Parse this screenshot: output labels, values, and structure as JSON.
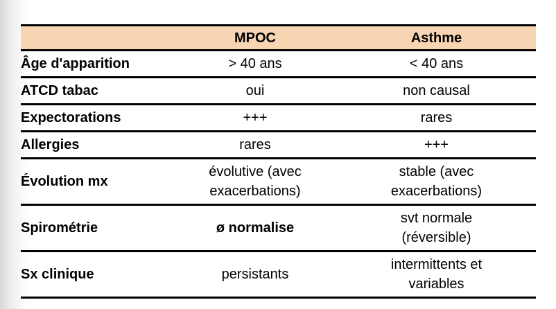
{
  "page": {
    "background": "#ffffff",
    "edge_shadow_color": "#d8d8d8"
  },
  "table": {
    "colors": {
      "header_bg": "#F7D5B3",
      "border": "#000000",
      "text": "#000000"
    },
    "header": {
      "col1": "",
      "col2": "MPOC",
      "col3": "Asthme"
    },
    "rows": [
      {
        "label": "Âge d'apparition",
        "mpoc": "> 40 ans",
        "asthme": "< 40 ans"
      },
      {
        "label": "ATCD tabac",
        "mpoc": "oui",
        "asthme": "non causal"
      },
      {
        "label": "Expectorations",
        "mpoc": "+++",
        "asthme": "rares"
      },
      {
        "label": "Allergies",
        "mpoc": "rares",
        "asthme": "+++"
      },
      {
        "label": "Évolution mx",
        "mpoc": "évolutive (avec exacerbations)",
        "asthme": "stable (avec exacerbations)"
      },
      {
        "label": "Spirométrie",
        "mpoc": "ø normalise",
        "mpoc_bold": true,
        "asthme": "svt normale (réversible)"
      },
      {
        "label": "Sx clinique",
        "mpoc": "persistants",
        "asthme": "intermittents et variables"
      }
    ]
  }
}
